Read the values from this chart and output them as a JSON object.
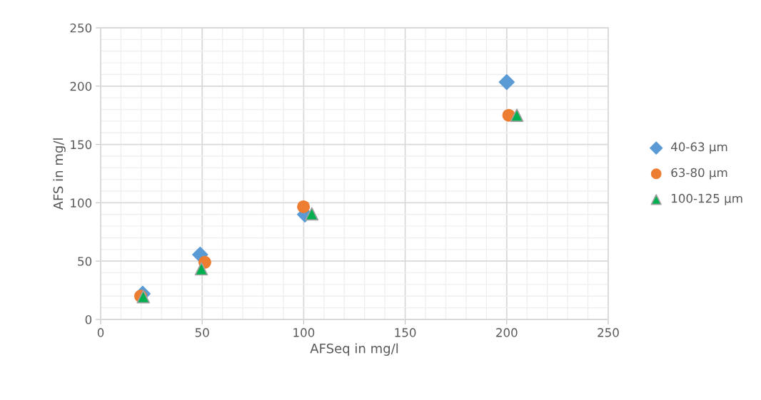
{
  "chart_data": {
    "type": "scatter",
    "xlabel": "AFSeq in mg/l",
    "ylabel": "AFS in mg/l",
    "series": [
      {
        "name": "40-63 µm",
        "color": "#5b9bd5",
        "marker": "diamond",
        "x": [
          20.7,
          49,
          100.6,
          200
        ],
        "values": [
          22,
          55.6,
          90,
          203.5
        ]
      },
      {
        "name": "63-80 µm",
        "color": "#ed7d31",
        "marker": "circle",
        "x": [
          19.7,
          51.3,
          99.9,
          201
        ],
        "values": [
          20,
          49,
          96.6,
          175
        ]
      },
      {
        "name": "100-125 µm",
        "color": "#00b050",
        "marker": "triangle",
        "x": [
          21,
          49.6,
          104,
          205
        ],
        "values": [
          19.5,
          43.4,
          90.5,
          175
        ]
      }
    ],
    "xlim": [
      0,
      250
    ],
    "xticks": [
      0,
      50,
      100,
      150,
      200,
      250
    ],
    "ylim": [
      0,
      250
    ],
    "yticks": [
      0,
      50,
      100,
      150,
      200,
      250
    ],
    "grid": true,
    "legend": "right"
  }
}
